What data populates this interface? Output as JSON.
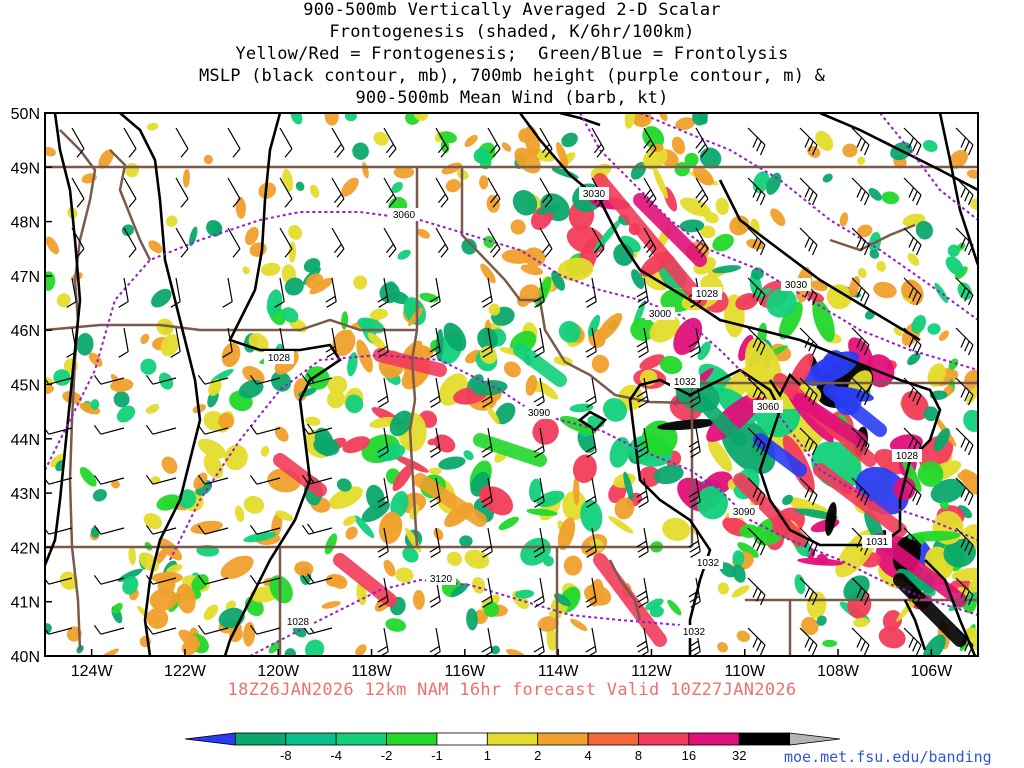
{
  "title": {
    "lines": [
      "900-500mb Vertically Averaged 2-D Scalar",
      "Frontogenesis (shaded, K/6hr/100km)",
      "Yellow/Red = Frontogenesis;  Green/Blue = Frontolysis",
      "MSLP (black contour, mb), 700mb height (purple contour, m) &",
      "900-500mb Mean Wind (barb, kt)"
    ]
  },
  "axes": {
    "lat_labels": [
      "50N",
      "49N",
      "48N",
      "47N",
      "46N",
      "45N",
      "44N",
      "43N",
      "42N",
      "41N",
      "40N"
    ],
    "lon_labels": [
      "124W",
      "122W",
      "120W",
      "118W",
      "116W",
      "114W",
      "112W",
      "110W",
      "108W",
      "106W"
    ],
    "lat_range": [
      40,
      50
    ],
    "lon_range": [
      -125,
      -105
    ]
  },
  "contour_labels": {
    "mslp": [
      "1028",
      "1028",
      "1032",
      "1028",
      "1032",
      "1031",
      "1032",
      "1028"
    ],
    "height": [
      "3060",
      "3030",
      "3030",
      "3000",
      "3090",
      "3060",
      "3090",
      "3120"
    ]
  },
  "valid_line": "18Z26JAN2026 12km NAM 16hr forecast Valid 10Z27JAN2026",
  "colorbar": {
    "ticks": [
      "-8",
      "-4",
      "-2",
      "-1",
      "1",
      "2",
      "4",
      "8",
      "16",
      "32"
    ],
    "colors": [
      "#2a3cf2",
      "#0aa86c",
      "#0bbf8a",
      "#11d07a",
      "#22d82a",
      "#ffffff",
      "#e4dc2c",
      "#f0a02c",
      "#f26838",
      "#f23c5a",
      "#e0107a",
      "#000000",
      "#b4b4b4"
    ]
  },
  "credit": "moe.met.fsu.edu/banding",
  "colors": {
    "border": "#7a5a4a",
    "mslp": "#000000",
    "height": "#9a1acc",
    "valid_text": "#f07070",
    "credit_text": "#3355dd"
  }
}
